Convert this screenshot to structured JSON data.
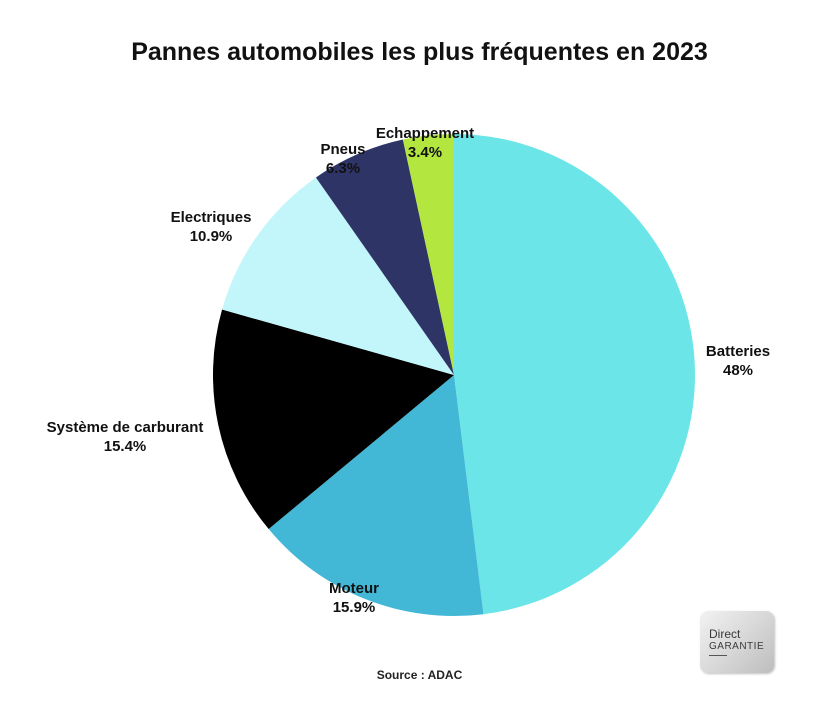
{
  "chart_data": {
    "type": "pie",
    "title": "Pannes automobiles les plus fréquentes en 2023",
    "slices": [
      {
        "name": "Batteries",
        "label": "48%",
        "value": 48.0,
        "color": "#6ce5e8"
      },
      {
        "name": "Moteur",
        "label": "15.9%",
        "value": 15.9,
        "color": "#42b8d6"
      },
      {
        "name": "Système de carburant",
        "label": "15.4%",
        "value": 15.4,
        "color": "#000000"
      },
      {
        "name": "Electriques",
        "label": "10.9%",
        "value": 10.9,
        "color": "#c3f6fb"
      },
      {
        "name": "Pneus",
        "label": "6.3%",
        "value": 6.3,
        "color": "#2e3566"
      },
      {
        "name": "Echappement",
        "label": "3.4%",
        "value": 3.4,
        "color": "#b3e63e"
      }
    ],
    "start_angle": "12 o'clock",
    "direction": "clockwise"
  },
  "source": "Source : ADAC",
  "logo": {
    "line1": "Direct",
    "line2": "GARANTIE"
  }
}
